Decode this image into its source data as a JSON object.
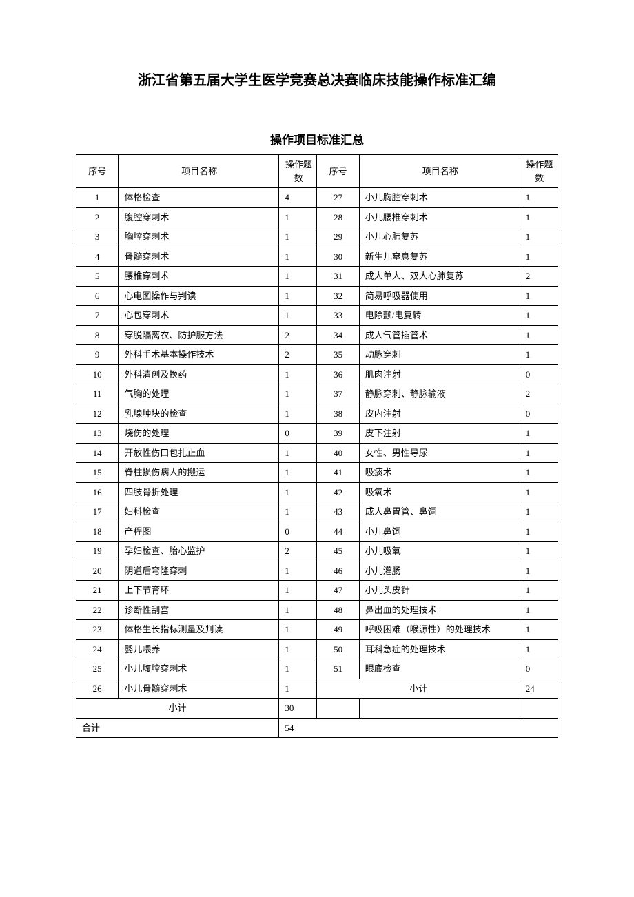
{
  "page_title": "浙江省第五届大学生医学竞赛总决赛临床技能操作标准汇编",
  "table_title": "操作项目标准汇总",
  "headers": {
    "idx": "序号",
    "name": "项目名称",
    "count": "操作题数"
  },
  "left_rows": [
    {
      "idx": "1",
      "name": "体格检查",
      "count": "4"
    },
    {
      "idx": "2",
      "name": "腹腔穿刺术",
      "count": "1"
    },
    {
      "idx": "3",
      "name": "胸腔穿刺术",
      "count": "1"
    },
    {
      "idx": "4",
      "name": "骨髓穿刺术",
      "count": "1"
    },
    {
      "idx": "5",
      "name": "腰椎穿刺术",
      "count": "1"
    },
    {
      "idx": "6",
      "name": "心电图操作与判读",
      "count": "1"
    },
    {
      "idx": "7",
      "name": "心包穿刺术",
      "count": "1"
    },
    {
      "idx": "8",
      "name": "穿脱隔离衣、防护服方法",
      "count": "2"
    },
    {
      "idx": "9",
      "name": "外科手术基本操作技术",
      "count": "2"
    },
    {
      "idx": "10",
      "name": "外科清创及换药",
      "count": "1"
    },
    {
      "idx": "11",
      "name": "气胸的处理",
      "count": "1"
    },
    {
      "idx": "12",
      "name": "乳腺肿块的检查",
      "count": "1"
    },
    {
      "idx": "13",
      "name": "烧伤的处理",
      "count": "0"
    },
    {
      "idx": "14",
      "name": "开放性伤口包扎止血",
      "count": "1"
    },
    {
      "idx": "15",
      "name": "脊柱损伤病人的搬运",
      "count": "1"
    },
    {
      "idx": "16",
      "name": "四肢骨折处理",
      "count": "1"
    },
    {
      "idx": "17",
      "name": "妇科检查",
      "count": "1"
    },
    {
      "idx": "18",
      "name": "产程图",
      "count": "0"
    },
    {
      "idx": "19",
      "name": "孕妇检查、胎心监护",
      "count": "2"
    },
    {
      "idx": "20",
      "name": "阴道后穹隆穿刺",
      "count": "1"
    },
    {
      "idx": "21",
      "name": "上下节育环",
      "count": "1"
    },
    {
      "idx": "22",
      "name": "诊断性刮宫",
      "count": "1"
    },
    {
      "idx": "23",
      "name": "体格生长指标测量及判读",
      "count": "1"
    },
    {
      "idx": "24",
      "name": "婴儿喂养",
      "count": "1"
    },
    {
      "idx": "25",
      "name": "小儿腹腔穿刺术",
      "count": "1"
    },
    {
      "idx": "26",
      "name": "小儿骨髓穿刺术",
      "count": "1"
    }
  ],
  "right_rows": [
    {
      "idx": "27",
      "name": "小儿胸腔穿刺术",
      "count": "1"
    },
    {
      "idx": "28",
      "name": "小儿腰椎穿刺术",
      "count": "1"
    },
    {
      "idx": "29",
      "name": "小儿心肺复苏",
      "count": "1"
    },
    {
      "idx": "30",
      "name": "新生儿窒息复苏",
      "count": "1"
    },
    {
      "idx": "31",
      "name": "成人单人、双人心肺复苏",
      "count": "2"
    },
    {
      "idx": "32",
      "name": "简易呼吸器使用",
      "count": "1"
    },
    {
      "idx": "33",
      "name": "电除颤/电复转",
      "count": "1"
    },
    {
      "idx": "34",
      "name": "成人气管插管术",
      "count": "1"
    },
    {
      "idx": "35",
      "name": "动脉穿刺",
      "count": "1"
    },
    {
      "idx": "36",
      "name": "肌肉注射",
      "count": "0"
    },
    {
      "idx": "37",
      "name": "静脉穿刺、静脉输液",
      "count": "2"
    },
    {
      "idx": "38",
      "name": "皮内注射",
      "count": "0"
    },
    {
      "idx": "39",
      "name": "皮下注射",
      "count": "1"
    },
    {
      "idx": "40",
      "name": "女性、男性导尿",
      "count": "1"
    },
    {
      "idx": "41",
      "name": "吸痰术",
      "count": "1"
    },
    {
      "idx": "42",
      "name": "吸氧术",
      "count": "1"
    },
    {
      "idx": "43",
      "name": "成人鼻胃管、鼻饲",
      "count": "1"
    },
    {
      "idx": "44",
      "name": "小儿鼻饲",
      "count": "1"
    },
    {
      "idx": "45",
      "name": "小儿吸氧",
      "count": "1"
    },
    {
      "idx": "46",
      "name": "小儿灌肠",
      "count": "1"
    },
    {
      "idx": "47",
      "name": "小儿头皮针",
      "count": "1"
    },
    {
      "idx": "48",
      "name": "鼻出血的处理技术",
      "count": "1"
    },
    {
      "idx": "49",
      "name": "呼吸困难（喉源性）的处理技术",
      "count": "1"
    },
    {
      "idx": "50",
      "name": "耳科急症的处理技术",
      "count": "1"
    },
    {
      "idx": "51",
      "name": "眼底检查",
      "count": "0"
    }
  ],
  "subtotal_left_label": "小计",
  "subtotal_left_value": "30",
  "subtotal_right_label": "小计",
  "subtotal_right_value": "24",
  "total_label": "合计",
  "total_value": "54",
  "styling": {
    "background_color": "#ffffff",
    "text_color": "#000000",
    "border_color": "#000000",
    "title_fontsize": 20,
    "table_title_fontsize": 17,
    "cell_fontsize": 13,
    "font_family": "SimSun"
  }
}
